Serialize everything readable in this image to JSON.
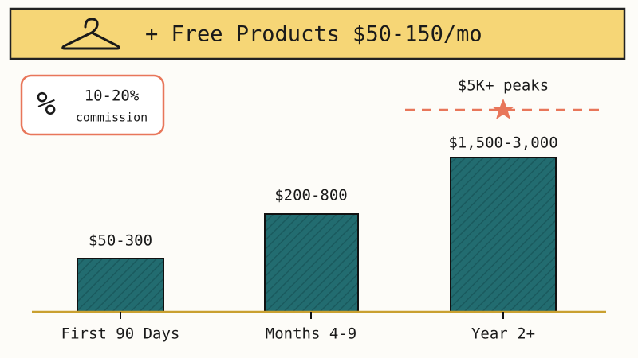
{
  "banner": {
    "title": "+ Free Products $50-150/mo"
  },
  "badge": {
    "symbol": "%",
    "rate": "10-20%",
    "label": "commission"
  },
  "peak": {
    "label": "$5K+ peaks"
  },
  "stages": [
    {
      "label": "First 90 Days",
      "earnings": "$50-300"
    },
    {
      "label": "Months 4-9",
      "earnings": "$200-800"
    },
    {
      "label": "Year 2+",
      "earnings": "$1,500-3,000"
    }
  ]
}
